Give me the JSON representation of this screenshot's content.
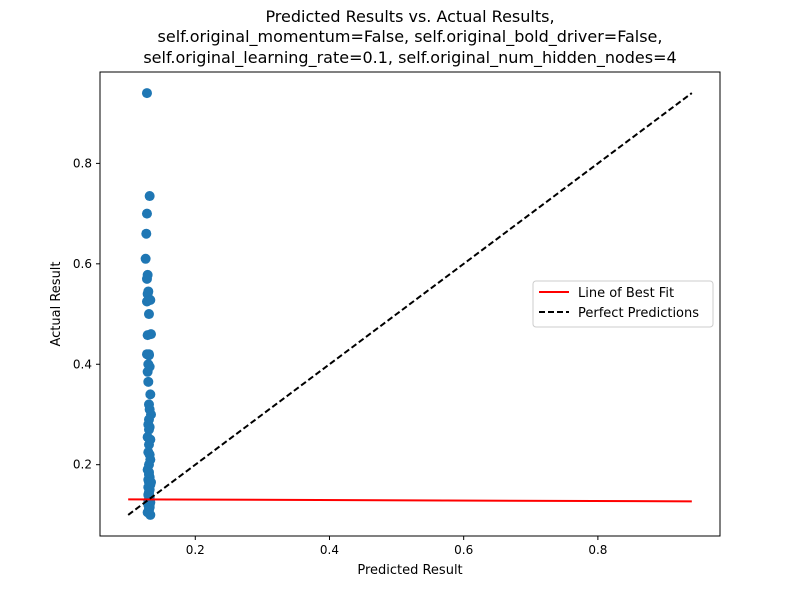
{
  "chart_data": {
    "type": "scatter",
    "title_lines": [
      "Predicted Results vs. Actual Results,",
      "self.original_momentum=False, self.original_bold_driver=False,",
      "self.original_learning_rate=0.1, self.original_num_hidden_nodes=4"
    ],
    "xlabel": "Predicted Result",
    "ylabel": "Actual Result",
    "xlim": [
      0.058,
      0.982
    ],
    "ylim": [
      0.058,
      0.982
    ],
    "xticks": [
      0.2,
      0.4,
      0.6,
      0.8
    ],
    "xtick_labels": [
      "0.2",
      "0.4",
      "0.6",
      "0.8"
    ],
    "yticks": [
      0.2,
      0.4,
      0.6,
      0.8
    ],
    "ytick_labels": [
      "0.2",
      "0.4",
      "0.6",
      "0.8"
    ],
    "grid": false,
    "legend_position": "center-right",
    "colors": {
      "points": "#1f77b4",
      "best_fit": "#ff0000",
      "perfect": "#000000"
    },
    "series": [
      {
        "type": "scatter",
        "x": [
          0.128,
          0.132,
          0.128,
          0.127,
          0.126,
          0.129,
          0.128,
          0.13,
          0.129,
          0.133,
          0.128,
          0.131,
          0.134,
          0.129,
          0.131,
          0.128,
          0.131,
          0.13,
          0.132,
          0.129,
          0.13,
          0.133,
          0.131,
          0.132,
          0.134,
          0.131,
          0.13,
          0.132,
          0.131,
          0.129,
          0.133,
          0.131,
          0.13,
          0.132,
          0.133,
          0.131,
          0.129,
          0.131,
          0.132,
          0.13,
          0.131,
          0.133,
          0.13,
          0.132,
          0.131,
          0.13,
          0.132,
          0.131,
          0.133,
          0.13,
          0.132,
          0.131,
          0.129,
          0.133,
          0.131,
          0.132,
          0.13,
          0.131,
          0.134,
          0.131
        ],
        "y": [
          0.94,
          0.735,
          0.7,
          0.66,
          0.61,
          0.578,
          0.57,
          0.545,
          0.54,
          0.528,
          0.525,
          0.5,
          0.46,
          0.458,
          0.42,
          0.42,
          0.418,
          0.4,
          0.395,
          0.385,
          0.365,
          0.34,
          0.32,
          0.31,
          0.3,
          0.29,
          0.28,
          0.275,
          0.27,
          0.255,
          0.25,
          0.24,
          0.225,
          0.22,
          0.21,
          0.2,
          0.19,
          0.18,
          0.175,
          0.17,
          0.165,
          0.16,
          0.155,
          0.15,
          0.145,
          0.14,
          0.135,
          0.13,
          0.125,
          0.12,
          0.115,
          0.11,
          0.105,
          0.1,
          0.112,
          0.118,
          0.128,
          0.142,
          0.165,
          0.185
        ]
      },
      {
        "name": "Line of Best Fit",
        "type": "line",
        "x": [
          0.1,
          0.94
        ],
        "y": [
          0.131,
          0.127
        ]
      },
      {
        "name": "Perfect Predictions",
        "type": "line",
        "style": "dashed",
        "x": [
          0.1,
          0.94
        ],
        "y": [
          0.1,
          0.94
        ]
      }
    ]
  }
}
